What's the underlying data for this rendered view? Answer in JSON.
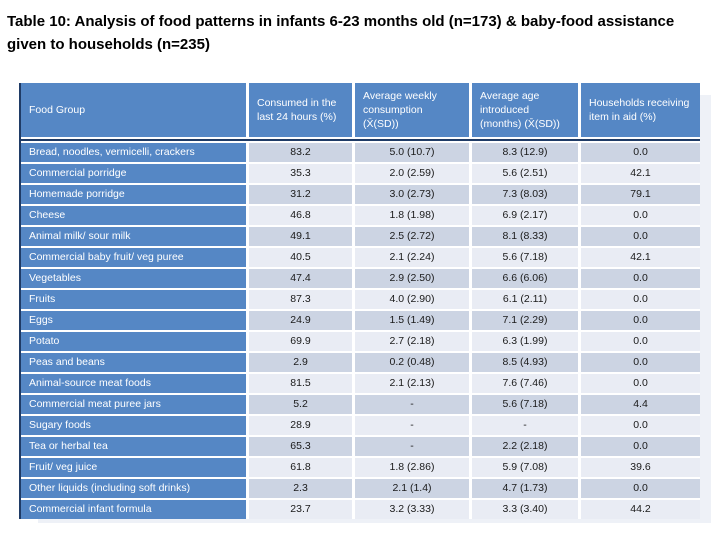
{
  "title": "Table 10: Analysis of food patterns in infants 6-23 months old (n=173) & baby-food assistance given to households (n=235)",
  "colors": {
    "header_blue": "#5587c5",
    "band_dark": "#ccd4e3",
    "band_light": "#e9ecf4",
    "border_dark": "#1f3b66"
  },
  "table": {
    "columns": [
      "Food Group",
      "Consumed in the last 24 hours (%)",
      "Average weekly consumption (X̄(SD))",
      "Average age introduced (months) (X̄(SD))",
      "Households receiving item in aid (%)"
    ],
    "rows": [
      [
        "Bread, noodles, vermicelli, crackers",
        "83.2",
        "5.0 (10.7)",
        "8.3 (12.9)",
        "0.0"
      ],
      [
        "Commercial porridge",
        "35.3",
        "2.0 (2.59)",
        "5.6 (2.51)",
        "42.1"
      ],
      [
        "Homemade porridge",
        "31.2",
        "3.0 (2.73)",
        "7.3 (8.03)",
        "79.1"
      ],
      [
        "Cheese",
        "46.8",
        "1.8 (1.98)",
        "6.9 (2.17)",
        "0.0"
      ],
      [
        "Animal milk/ sour milk",
        "49.1",
        "2.5 (2.72)",
        "8.1 (8.33)",
        "0.0"
      ],
      [
        "Commercial baby fruit/ veg puree",
        "40.5",
        "2.1 (2.24)",
        "5.6 (7.18)",
        "42.1"
      ],
      [
        "Vegetables",
        "47.4",
        "2.9 (2.50)",
        "6.6 (6.06)",
        "0.0"
      ],
      [
        "Fruits",
        "87.3",
        "4.0 (2.90)",
        "6.1 (2.11)",
        "0.0"
      ],
      [
        "Eggs",
        "24.9",
        "1.5 (1.49)",
        "7.1 (2.29)",
        "0.0"
      ],
      [
        "Potato",
        "69.9",
        "2.7 (2.18)",
        "6.3 (1.99)",
        "0.0"
      ],
      [
        "Peas and beans",
        "2.9",
        "0.2 (0.48)",
        "8.5 (4.93)",
        "0.0"
      ],
      [
        "Animal-source meat foods",
        "81.5",
        "2.1 (2.13)",
        "7.6 (7.46)",
        "0.0"
      ],
      [
        "Commercial meat puree jars",
        "5.2",
        "-",
        "5.6 (7.18)",
        "4.4"
      ],
      [
        "Sugary foods",
        "28.9",
        "-",
        "-",
        "0.0"
      ],
      [
        "Tea or herbal tea",
        "65.3",
        "-",
        "2.2 (2.18)",
        "0.0"
      ],
      [
        "Fruit/ veg juice",
        "61.8",
        "1.8 (2.86)",
        "5.9 (7.08)",
        "39.6"
      ],
      [
        "Other liquids (including soft drinks)",
        "2.3",
        "2.1 (1.4)",
        "4.7 (1.73)",
        "0.0"
      ],
      [
        "Commercial infant formula",
        "23.7",
        "3.2 (3.33)",
        "3.3 (3.40)",
        "44.2"
      ]
    ]
  }
}
